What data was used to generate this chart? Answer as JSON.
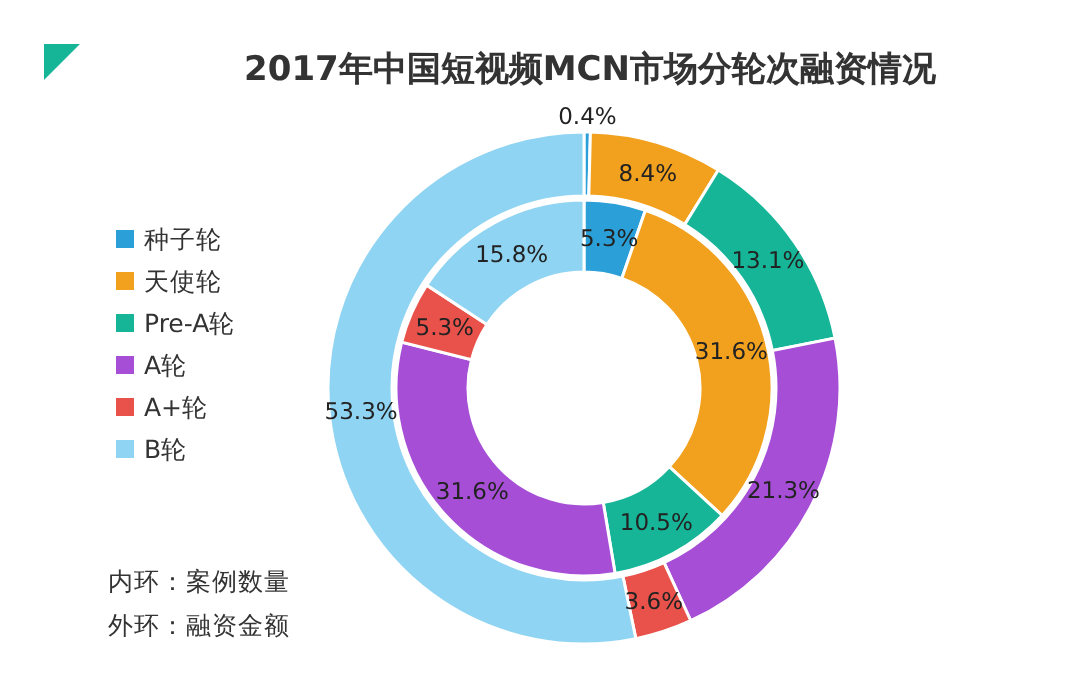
{
  "chart_data": {
    "type": "donut",
    "title": "2017年中国短视频MCN市场分轮次融资情况",
    "categories": [
      "种子轮",
      "天使轮",
      "Pre-A轮",
      "A轮",
      "A+轮",
      "B轮"
    ],
    "colors": [
      "#2b9fd8",
      "#f2a11f",
      "#17b597",
      "#a64fd6",
      "#e8524a",
      "#8fd4f2"
    ],
    "series": [
      {
        "values": [
          5.3,
          31.6,
          10.5,
          31.6,
          5.3,
          15.8
        ],
        "value_labels": [
          "5.3%",
          "31.6%",
          "10.5%",
          "31.6%",
          "5.3%",
          "15.8%"
        ]
      },
      {
        "values": [
          0.4,
          8.4,
          13.1,
          21.3,
          3.6,
          53.3
        ],
        "value_labels": [
          "0.4%",
          "8.4%",
          "13.1%",
          "21.3%",
          "3.6%",
          "53.3%"
        ]
      }
    ],
    "annotations": [
      "内环：案例数量",
      "外环：融资金额"
    ],
    "legend": "left"
  }
}
